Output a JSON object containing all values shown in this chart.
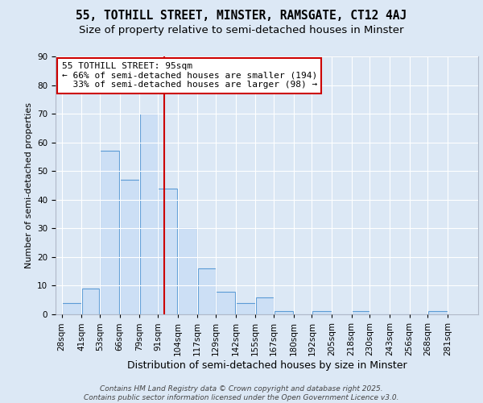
{
  "title1": "55, TOTHILL STREET, MINSTER, RAMSGATE, CT12 4AJ",
  "title2": "Size of property relative to semi-detached houses in Minster",
  "xlabel": "Distribution of semi-detached houses by size in Minster",
  "ylabel": "Number of semi-detached properties",
  "bin_labels": [
    "28sqm",
    "41sqm",
    "53sqm",
    "66sqm",
    "79sqm",
    "91sqm",
    "104sqm",
    "117sqm",
    "129sqm",
    "142sqm",
    "155sqm",
    "167sqm",
    "180sqm",
    "192sqm",
    "205sqm",
    "218sqm",
    "230sqm",
    "243sqm",
    "256sqm",
    "268sqm",
    "281sqm"
  ],
  "bar_values": [
    4,
    9,
    57,
    47,
    70,
    44,
    30,
    16,
    8,
    4,
    6,
    1,
    0,
    1,
    0,
    1,
    0,
    0,
    0,
    1
  ],
  "bin_edges": [
    28,
    41,
    53,
    66,
    79,
    91,
    104,
    117,
    129,
    142,
    155,
    167,
    180,
    192,
    205,
    218,
    230,
    243,
    256,
    268,
    281
  ],
  "bar_color": "#ccdff5",
  "bar_edge_color": "#5b9bd5",
  "vline_x": 95,
  "vline_color": "#cc0000",
  "annotation_line1": "55 TOTHILL STREET: 95sqm",
  "annotation_line2": "← 66% of semi-detached houses are smaller (194)",
  "annotation_line3": "  33% of semi-detached houses are larger (98) →",
  "annotation_box_color": "#ffffff",
  "annotation_box_edge": "#cc0000",
  "bg_color": "#dce8f5",
  "plot_bg_color": "#dce8f5",
  "grid_color": "#ffffff",
  "ylim": [
    0,
    90
  ],
  "yticks": [
    0,
    10,
    20,
    30,
    40,
    50,
    60,
    70,
    80,
    90
  ],
  "footnote": "Contains HM Land Registry data © Crown copyright and database right 2025.\nContains public sector information licensed under the Open Government Licence v3.0.",
  "title1_fontsize": 10.5,
  "title2_fontsize": 9.5,
  "annotation_fontsize": 8,
  "xlabel_fontsize": 9,
  "ylabel_fontsize": 8,
  "tick_fontsize": 7.5,
  "footnote_fontsize": 6.5
}
